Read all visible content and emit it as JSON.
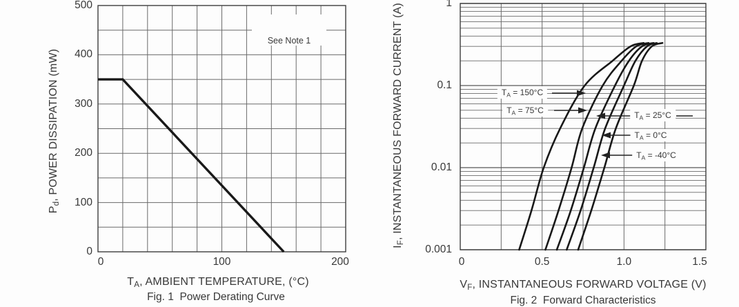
{
  "colors": {
    "background": "#fdfdfd",
    "grid": "#6a6a6a",
    "grid_major": "#575757",
    "border": "#3d3d3d",
    "curve": "#191919",
    "arrow": "#222222",
    "text": "#383838"
  },
  "chart_data": [
    {
      "id": "fig1",
      "type": "line",
      "caption": "Fig. 1  Power Derating Curve",
      "annotation": {
        "text": "See Note 1"
      },
      "grid": true,
      "x_axis": {
        "label_pre": "T",
        "label_sub": "A",
        "label_post": ", AMBIENT TEMPERATURE, (°C)",
        "scale": "linear",
        "min": 0,
        "max": 200,
        "grid_step": 20,
        "tick_values": [
          0,
          100,
          200
        ],
        "tick_labels": [
          "0",
          "100",
          "200"
        ]
      },
      "y_axis": {
        "label_pre": "P",
        "label_sub": "d",
        "label_post": ", POWER DISSIPATION (mW)",
        "scale": "linear",
        "min": 0,
        "max": 500,
        "grid_step": 50,
        "tick_values": [
          500,
          400,
          300,
          200,
          100,
          0
        ],
        "tick_labels": [
          "500",
          "400",
          "300",
          "200",
          "100",
          "0"
        ]
      },
      "series": [
        {
          "name": "power-derating",
          "x": [
            0,
            20,
            150
          ],
          "y": [
            350,
            350,
            0
          ]
        }
      ]
    },
    {
      "id": "fig2",
      "type": "line",
      "caption": "Fig. 2  Forward Characteristics",
      "grid": true,
      "x_axis": {
        "label_pre": "V",
        "label_sub": "F",
        "label_post": ", INSTANTANEOUS FORWARD VOLTAGE (V)",
        "scale": "linear",
        "min": 0,
        "max": 1.5,
        "grid_step": 0.25,
        "tick_values": [
          0,
          0.5,
          1.0,
          1.5
        ],
        "tick_labels": [
          "0",
          "0.5",
          "1.0",
          "1.5"
        ]
      },
      "y_axis": {
        "label_pre": "I",
        "label_sub": "F",
        "label_post": ", INSTANTANEOUS FORWARD CURRENT (A)",
        "scale": "log",
        "min": 0.001,
        "max": 1,
        "tick_values": [
          1,
          0.1,
          0.01,
          0.001
        ],
        "tick_labels": [
          "1",
          "0.1",
          "0.01",
          "0.001"
        ]
      },
      "current_levels": [
        0.001,
        0.003,
        0.01,
        0.03,
        0.1,
        0.2,
        0.3,
        0.33
      ],
      "series": [
        {
          "name": "ta-150c",
          "label_pre": "T",
          "label_sub": "A",
          "label_post": " = 150°C",
          "voltages": [
            0.36,
            0.435,
            0.51,
            0.61,
            0.76,
            0.93,
            1.04,
            1.12
          ]
        },
        {
          "name": "ta-75c",
          "label_pre": "T",
          "label_sub": "A",
          "label_post": " = 75°C",
          "voltages": [
            0.52,
            0.6,
            0.68,
            0.745,
            0.87,
            0.985,
            1.075,
            1.15
          ]
        },
        {
          "name": "ta-25c",
          "label_pre": "T",
          "label_sub": "A",
          "label_post": " = 25°C",
          "voltages": [
            0.59,
            0.675,
            0.755,
            0.825,
            0.945,
            1.03,
            1.11,
            1.18
          ]
        },
        {
          "name": "ta-0c",
          "label_pre": "T",
          "label_sub": "A",
          "label_post": " = 0°C",
          "voltages": [
            0.65,
            0.735,
            0.815,
            0.885,
            1.0,
            1.07,
            1.14,
            1.2
          ]
        },
        {
          "name": "ta-minus40c",
          "label_pre": "T",
          "label_sub": "A",
          "label_post": " = -40°C",
          "voltages": [
            0.72,
            0.8,
            0.88,
            0.95,
            1.06,
            1.11,
            1.17,
            1.235
          ]
        }
      ]
    }
  ]
}
